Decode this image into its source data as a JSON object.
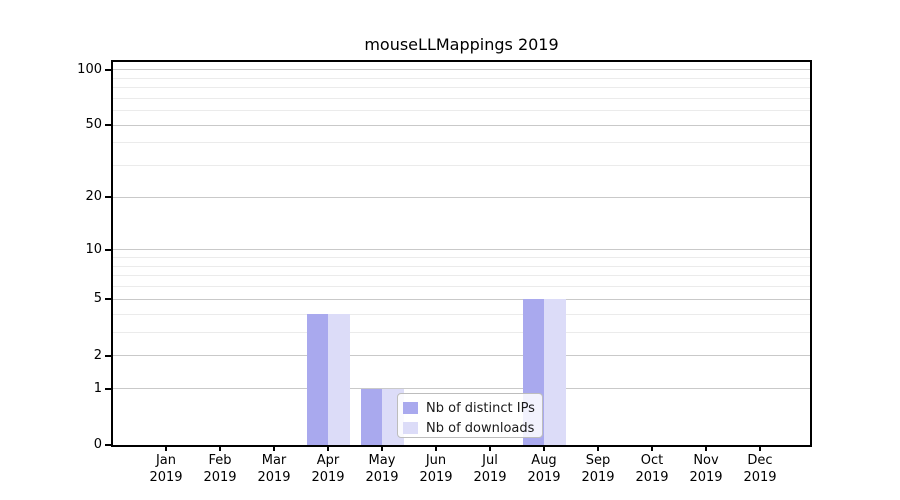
{
  "chart_data": {
    "type": "bar",
    "title": "mouseLLMappings 2019",
    "categories": [
      "Jan 2019",
      "Feb 2019",
      "Mar 2019",
      "Apr 2019",
      "May 2019",
      "Jun 2019",
      "Jul 2019",
      "Aug 2019",
      "Sep 2019",
      "Oct 2019",
      "Nov 2019",
      "Dec 2019"
    ],
    "series": [
      {
        "name": "Nb of distinct IPs",
        "color": "#a9a9ee",
        "values": [
          0,
          0,
          0,
          4,
          1,
          0,
          0,
          5,
          0,
          0,
          0,
          0
        ]
      },
      {
        "name": "Nb of downloads",
        "color": "#dcdcf8",
        "values": [
          0,
          0,
          0,
          4,
          1,
          0,
          0,
          5,
          0,
          0,
          0,
          0
        ]
      }
    ],
    "xlabel": "",
    "ylabel": "",
    "y_axis": {
      "scale": "log10(value+1)",
      "ylim": [
        0,
        110
      ],
      "major_ticks": [
        0,
        1,
        2,
        5,
        10,
        20,
        50,
        100
      ],
      "minor_gridlines": [
        3,
        4,
        6,
        7,
        8,
        9,
        30,
        40,
        60,
        70,
        80,
        90
      ]
    },
    "grid": "on",
    "legend_position": "bottom-center-inside"
  },
  "colors": {
    "background": "#ffffff",
    "axis": "#000000",
    "major_gridline": "#c9c9c9",
    "minor_gridline": "#ebebeb",
    "series_ips": "#a9a9ee",
    "series_downloads": "#dcdcf8",
    "legend_border": "#bdbdbd"
  }
}
